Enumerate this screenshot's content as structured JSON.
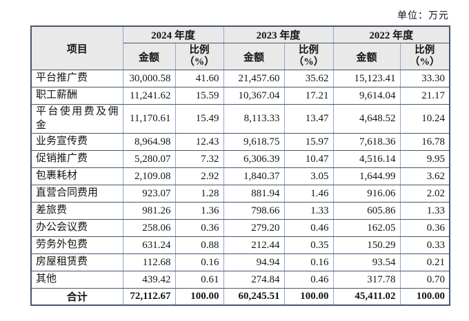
{
  "unit_label": "单位：万元",
  "table": {
    "item_header": "项目",
    "year_groups": [
      {
        "label": "2024 年度",
        "amount_label": "金额",
        "ratio_label": "比例\n（%）"
      },
      {
        "label": "2023 年度",
        "amount_label": "金额",
        "ratio_label": "比例\n（%）"
      },
      {
        "label": "2022 年度",
        "amount_label": "金额",
        "ratio_label": "比例\n（%）"
      }
    ],
    "rows": [
      {
        "item": "平台推广费",
        "values": [
          "30,000.58",
          "41.60",
          "21,457.60",
          "35.62",
          "15,123.41",
          "33.30"
        ]
      },
      {
        "item": "职工薪酬",
        "values": [
          "11,241.62",
          "15.59",
          "10,367.04",
          "17.21",
          "9,614.04",
          "21.17"
        ]
      },
      {
        "item": "平台使用费及佣金",
        "values": [
          "11,170.61",
          "15.49",
          "8,113.33",
          "13.47",
          "4,648.52",
          "10.24"
        ]
      },
      {
        "item": "业务宣传费",
        "values": [
          "8,964.98",
          "12.43",
          "9,618.75",
          "15.97",
          "7,618.36",
          "16.78"
        ]
      },
      {
        "item": "促销推广费",
        "values": [
          "5,280.07",
          "7.32",
          "6,306.39",
          "10.47",
          "4,516.14",
          "9.95"
        ]
      },
      {
        "item": "包裹耗材",
        "values": [
          "2,109.08",
          "2.92",
          "1,840.37",
          "3.05",
          "1,644.99",
          "3.62"
        ]
      },
      {
        "item": "直营合同费用",
        "values": [
          "923.07",
          "1.28",
          "881.94",
          "1.46",
          "916.06",
          "2.02"
        ]
      },
      {
        "item": "差旅费",
        "values": [
          "981.26",
          "1.36",
          "798.66",
          "1.33",
          "605.86",
          "1.33"
        ]
      },
      {
        "item": "办公会议费",
        "values": [
          "258.06",
          "0.36",
          "279.20",
          "0.46",
          "162.05",
          "0.36"
        ]
      },
      {
        "item": "劳务外包费",
        "values": [
          "631.24",
          "0.88",
          "212.44",
          "0.35",
          "150.29",
          "0.33"
        ]
      },
      {
        "item": "房屋租赁费",
        "values": [
          "112.68",
          "0.16",
          "94.94",
          "0.16",
          "93.54",
          "0.21"
        ]
      },
      {
        "item": "其他",
        "values": [
          "439.42",
          "0.61",
          "274.84",
          "0.46",
          "317.78",
          "0.70"
        ]
      }
    ],
    "total": {
      "item": "合计",
      "values": [
        "72,112.67",
        "100.00",
        "60,245.51",
        "100.00",
        "45,411.02",
        "100.00"
      ]
    }
  },
  "colors": {
    "header-bg": "#e9e9e9",
    "grid-h": "#46556f",
    "grid-v": "#8fa8cc",
    "text": "#141414",
    "page-bg": "#ffffff"
  }
}
